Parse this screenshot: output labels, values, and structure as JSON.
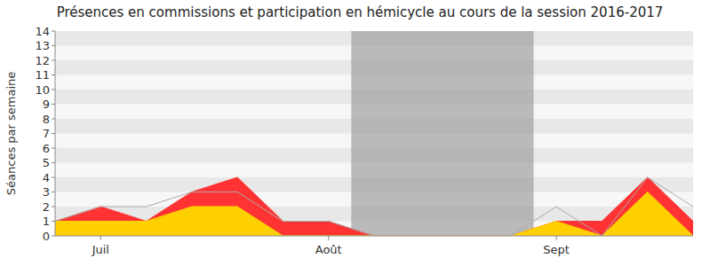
{
  "chart_data": {
    "type": "area",
    "title": "Présences en commissions et participation en hémicycle au cours de la session 2016-2017",
    "y_label": "Séances par semaine",
    "categories": [
      null,
      "Juil",
      null,
      null,
      null,
      null,
      "Août",
      null,
      null,
      null,
      null,
      "Sept",
      null,
      null,
      null
    ],
    "series": [
      {
        "color": "#ff3333",
        "type": "area",
        "values": [
          1,
          2,
          1,
          3,
          4,
          1,
          1,
          0,
          0,
          0,
          0,
          1,
          1,
          4,
          1
        ]
      },
      {
        "color": "#ffd000",
        "type": "area",
        "values": [
          1,
          1,
          1,
          2,
          2,
          0,
          0,
          0,
          0,
          0,
          0,
          1,
          0,
          3,
          0
        ]
      },
      {
        "color": "#aaaaaa",
        "type": "line",
        "values": [
          1,
          2,
          2,
          3,
          3,
          1,
          1,
          0,
          0,
          0,
          0,
          2,
          0,
          4,
          2
        ]
      }
    ],
    "vacation_band": [
      6.5,
      10.5
    ],
    "ylim": [
      0,
      14
    ],
    "yticks": [
      0,
      1,
      2,
      3,
      4,
      5,
      6,
      7,
      8,
      9,
      10,
      11,
      12,
      13,
      14
    ],
    "grid": true,
    "stacked": false
  }
}
